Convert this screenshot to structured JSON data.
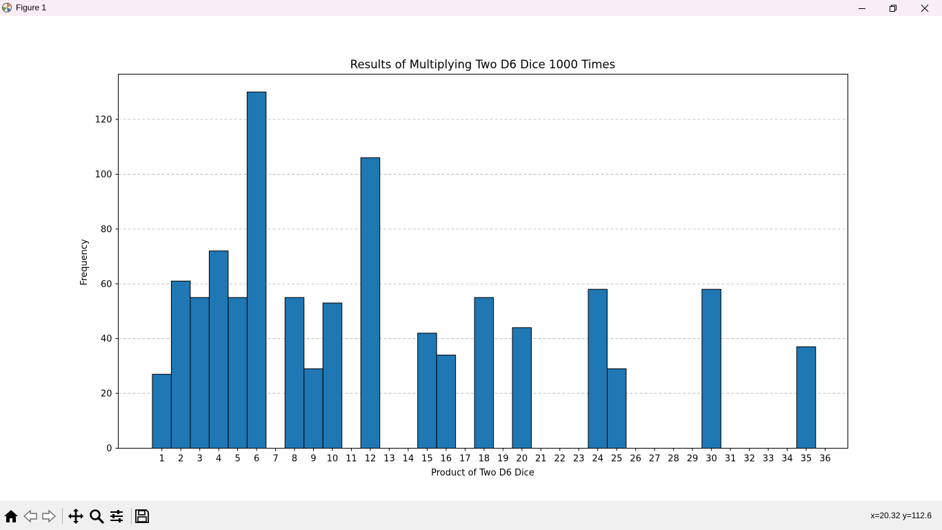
{
  "window": {
    "title": "Figure 1",
    "minimize_icon": "minimize-icon",
    "maximize_icon": "restore-icon",
    "close_icon": "close-icon"
  },
  "toolbar": {
    "items": [
      "home-icon",
      "back-arrow-icon",
      "forward-arrow-icon",
      "pan-icon",
      "zoom-icon",
      "configure-subplots-icon",
      "save-icon"
    ],
    "coords": "x=20.32 y=112.6"
  },
  "colors": {
    "bar_fill": "#1f77b4",
    "bar_edge": "#000000",
    "grid": "#b0b0b0",
    "titlebar": "#f7eef6",
    "toolbar": "#f0f0f0"
  },
  "chart_data": {
    "type": "bar",
    "title": "Results of Multiplying Two D6 Dice 1000 Times",
    "xlabel": "Product of Two D6 Dice",
    "ylabel": "Frequency",
    "categories": [
      "1",
      "2",
      "3",
      "4",
      "5",
      "6",
      "7",
      "8",
      "9",
      "10",
      "11",
      "12",
      "13",
      "14",
      "15",
      "16",
      "17",
      "18",
      "19",
      "20",
      "21",
      "22",
      "23",
      "24",
      "25",
      "26",
      "27",
      "28",
      "29",
      "30",
      "31",
      "32",
      "33",
      "34",
      "35",
      "36"
    ],
    "x": [
      1,
      2,
      3,
      4,
      5,
      6,
      8,
      9,
      10,
      12,
      15,
      16,
      18,
      20,
      24,
      25,
      30,
      35
    ],
    "values": [
      27,
      61,
      55,
      72,
      55,
      130,
      55,
      29,
      53,
      106,
      42,
      34,
      55,
      44,
      58,
      29,
      58,
      37
    ],
    "xlim": [
      -1.3,
      37.2
    ],
    "ylim": [
      0,
      136.5
    ],
    "yticks": [
      0,
      20,
      40,
      60,
      80,
      100,
      120
    ],
    "grid": "y-dashed",
    "legend": "none"
  }
}
